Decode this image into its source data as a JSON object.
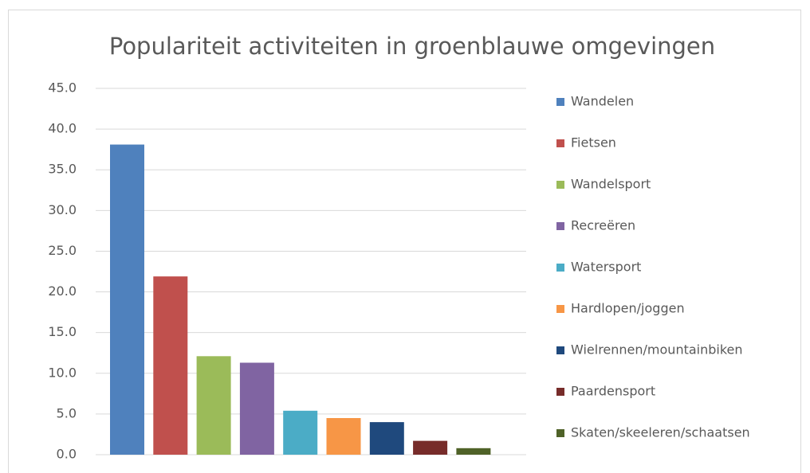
{
  "chart_data": {
    "type": "bar",
    "title": "Populariteit activiteiten in groenblauwe omgevingen",
    "series": [
      {
        "name": "Wandelen",
        "color": "#4f81bd",
        "values": [
          38.1
        ]
      },
      {
        "name": "Fietsen",
        "color": "#c0504d",
        "values": [
          21.9
        ]
      },
      {
        "name": "Wandelsport",
        "color": "#9bbb59",
        "values": [
          12.1
        ]
      },
      {
        "name": "Recreëren",
        "color": "#8064a2",
        "values": [
          11.3
        ]
      },
      {
        "name": "Watersport",
        "color": "#4bacc6",
        "values": [
          5.4
        ]
      },
      {
        "name": "Hardlopen/joggen",
        "color": "#f79646",
        "values": [
          4.5
        ]
      },
      {
        "name": "Wielrennen/mountainbiken",
        "color": "#1f497d",
        "values": [
          4.0
        ]
      },
      {
        "name": "Paardensport",
        "color": "#772c2a",
        "values": [
          1.7
        ]
      },
      {
        "name": "Skaten/skeeleren/schaatsen",
        "color": "#4f6228",
        "values": [
          0.8
        ]
      }
    ],
    "ylim": [
      0,
      45
    ],
    "yticks": [
      {
        "value": 0,
        "label": "0.0"
      },
      {
        "value": 5,
        "label": "5.0"
      },
      {
        "value": 10,
        "label": "10.0"
      },
      {
        "value": 15,
        "label": "15.0"
      },
      {
        "value": 20,
        "label": "20.0"
      },
      {
        "value": 25,
        "label": "25.0"
      },
      {
        "value": 30,
        "label": "30.0"
      },
      {
        "value": 35,
        "label": "35.0"
      },
      {
        "value": 40,
        "label": "40.0"
      },
      {
        "value": 45,
        "label": "45.0"
      }
    ],
    "grid": true,
    "legend": "right"
  }
}
